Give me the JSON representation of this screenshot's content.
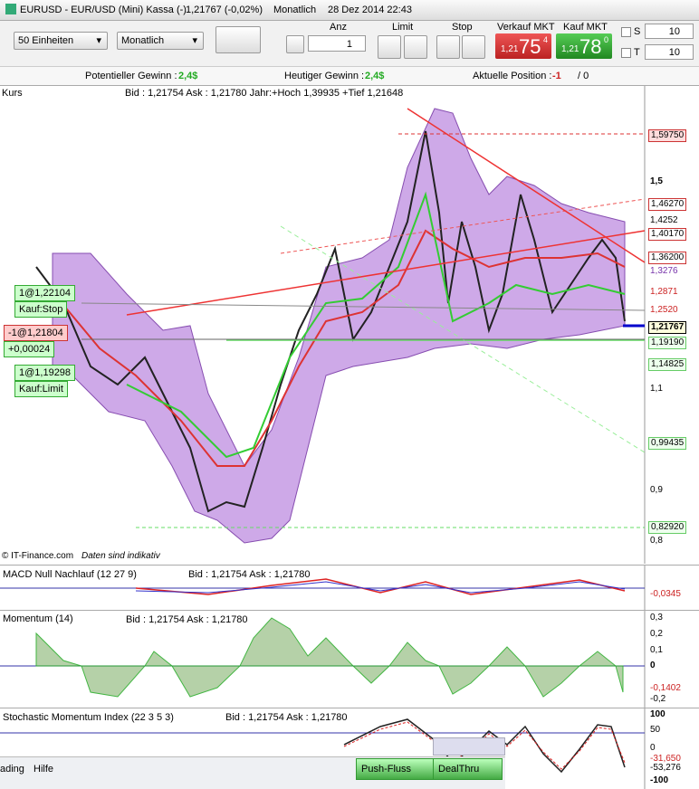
{
  "title_bar": {
    "symbol": "EURUSD - EUR/USD (Mini) Kassa (-)",
    "quote": "1,21767 (-0,02%)",
    "period": "Monatlich",
    "datetime": "28 Dez 2014 22:43"
  },
  "toolbar": {
    "units": "50 Einheiten",
    "period": "Monatlich",
    "qty_label": "Anz",
    "qty": "1",
    "limit": "Limit",
    "stop": "Stop",
    "sell_label": "Verkauf MKT",
    "sell_prefix": "1,21",
    "sell_big": "75",
    "sell_sup": "4",
    "buy_label": "Kauf MKT",
    "buy_prefix": "1,21",
    "buy_big": "78",
    "buy_sup": "0",
    "s_label": "S",
    "s_value": "10",
    "t_label": "T",
    "t_value": "10"
  },
  "info": {
    "potential_label": "Potentieller Gewinn :",
    "potential_value": "2,4$",
    "today_label": "Heutiger Gewinn :",
    "today_value": "2,4$",
    "position_label": "Aktuelle Position :",
    "position_value": "-1",
    "position_zero": "/ 0"
  },
  "price_panel": {
    "name": "Kurs",
    "quote": "Bid : 1,21754 Ask : 1,21780 Jahr:+Hoch 1,39935 +Tief 1,21648",
    "axis": [
      "1,59750",
      "1,5",
      "1,46270",
      "1,4252",
      "1,40170",
      "1,36200",
      "1,3276",
      "1,2871",
      "1,2520",
      "1,21767",
      "1,19190",
      "1,14825",
      "1,1",
      "0,99435",
      "0,9",
      "0,82920",
      "0,8"
    ],
    "orders": [
      "1@1,22104",
      "Kauf:Stop",
      "-1@1,21804",
      "+0,00024",
      "1@1,19298",
      "Kauf:Limit"
    ],
    "source": "© IT-Finance.com",
    "note": "Daten sind indikativ"
  },
  "macd_panel": {
    "name": "MACD Null Nachlauf (12 27 9)",
    "quote": "Bid : 1,21754 Ask : 1,21780",
    "axis": [
      "-0,0345"
    ]
  },
  "momentum_panel": {
    "name": "Momentum (14)",
    "quote": "Bid : 1,21754 Ask : 1,21780",
    "axis": [
      "0,3",
      "0,2",
      "0,1",
      "0",
      "-0,1402",
      "-0,2"
    ]
  },
  "stochastic_panel": {
    "name": "Stochastic Momentum Index (22 3 5 3)",
    "quote": "Bid : 1,21754 Ask : 1,21780",
    "axis": [
      "100",
      "50",
      "0",
      "-31,650",
      "-53,276",
      "-100"
    ]
  },
  "bottom_bar": {
    "menu_trading": "ading",
    "menu_help": "Hilfe",
    "push": "Push-Fluss",
    "dealthru": "DealThru"
  }
}
